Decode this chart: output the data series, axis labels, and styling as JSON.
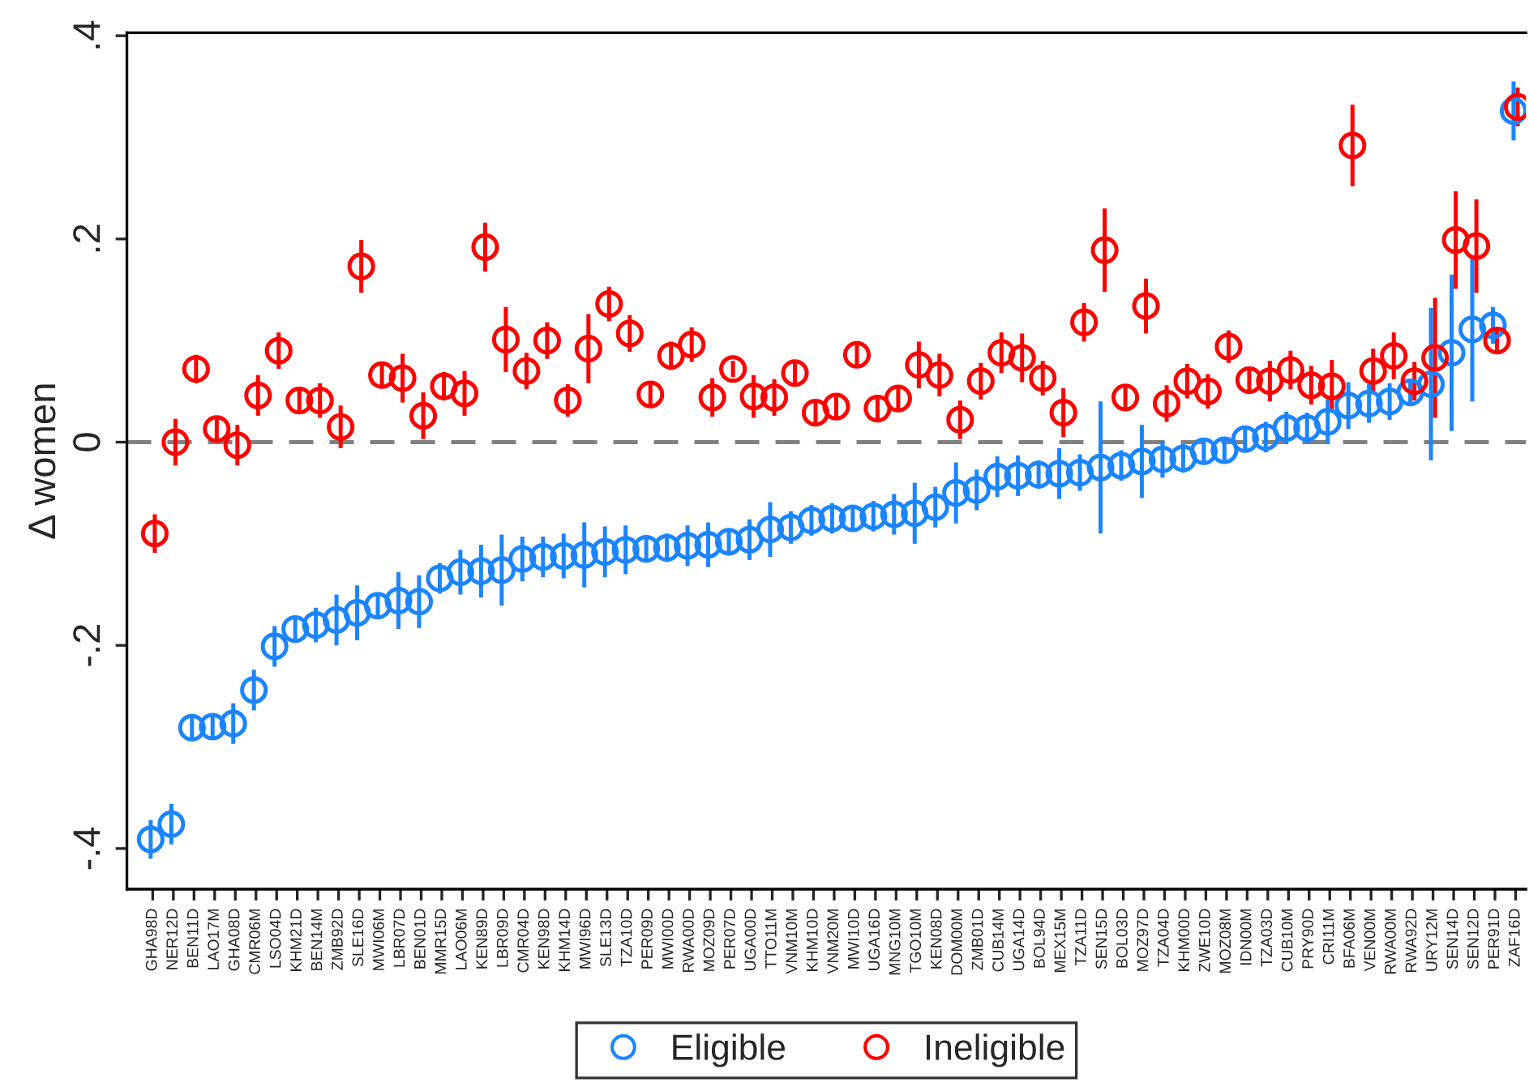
{
  "chart_data": {
    "type": "scatter",
    "ylabel": "Δ women",
    "categories": [
      "GHA98D",
      "NER12D",
      "BEN11D",
      "LAO17M",
      "GHA08D",
      "CMR06M",
      "LSO04D",
      "KHM21D",
      "BEN14M",
      "ZMB92D",
      "SLE16D",
      "MWI06M",
      "LBR07D",
      "BEN01D",
      "MMR15D",
      "LAO06M",
      "KEN89D",
      "LBR09D",
      "CMR04D",
      "KEN98D",
      "KHM14D",
      "MWI96D",
      "SLE13D",
      "TZA10D",
      "PER09D",
      "MWI00D",
      "RWA00D",
      "MOZ09D",
      "PER07D",
      "UGA00D",
      "TTO11M",
      "VNM10M",
      "KHM10D",
      "VNM20M",
      "MWI10D",
      "UGA16D",
      "MNG10M",
      "TGO10M",
      "KEN08D",
      "DOM00M",
      "ZMB01D",
      "CUB14M",
      "UGA14D",
      "BOL94D",
      "MEX15M",
      "TZA11D",
      "SEN15D",
      "BOL03D",
      "MOZ97D",
      "TZA04D",
      "KHM00D",
      "ZWE10D",
      "MOZ08M",
      "IDN00M",
      "TZA03D",
      "CUB10M",
      "PRY90D",
      "CRI11M",
      "BFA06M",
      "VEN00M",
      "RWA00M",
      "RWA92D",
      "URY12M",
      "SEN14D",
      "SEN12D",
      "PER91D",
      "ZAF16D"
    ],
    "series": [
      {
        "name": "Eligible",
        "color": "#1a85ff",
        "values": [
          -0.391,
          -0.376,
          -0.281,
          -0.28,
          -0.277,
          -0.244,
          -0.201,
          -0.184,
          -0.18,
          -0.175,
          -0.168,
          -0.161,
          -0.156,
          -0.157,
          -0.134,
          -0.128,
          -0.127,
          -0.126,
          -0.115,
          -0.113,
          -0.112,
          -0.111,
          -0.108,
          -0.106,
          -0.105,
          -0.104,
          -0.102,
          -0.101,
          -0.098,
          -0.096,
          -0.086,
          -0.084,
          -0.077,
          -0.075,
          -0.075,
          -0.073,
          -0.071,
          -0.07,
          -0.064,
          -0.05,
          -0.047,
          -0.034,
          -0.033,
          -0.032,
          -0.031,
          -0.03,
          -0.025,
          -0.023,
          -0.019,
          -0.017,
          -0.016,
          -0.009,
          -0.008,
          0.003,
          0.005,
          0.014,
          0.014,
          0.02,
          0.036,
          0.038,
          0.04,
          0.049,
          0.057,
          0.088,
          0.111,
          0.115,
          0.326
        ],
        "errors": [
          0.019,
          0.02,
          0.012,
          0.012,
          0.02,
          0.02,
          0.02,
          0.012,
          0.017,
          0.025,
          0.027,
          0.01,
          0.028,
          0.026,
          0.015,
          0.022,
          0.026,
          0.035,
          0.022,
          0.02,
          0.022,
          0.032,
          0.025,
          0.024,
          0.01,
          0.014,
          0.02,
          0.022,
          0.013,
          0.02,
          0.027,
          0.016,
          0.015,
          0.015,
          0.013,
          0.015,
          0.02,
          0.03,
          0.02,
          0.03,
          0.02,
          0.02,
          0.02,
          0.014,
          0.025,
          0.018,
          0.065,
          0.015,
          0.036,
          0.018,
          0.014,
          0.012,
          0.013,
          0.01,
          0.015,
          0.016,
          0.015,
          0.022,
          0.023,
          0.019,
          0.018,
          0.012,
          0.075,
          0.077,
          0.071,
          0.018,
          0.029
        ]
      },
      {
        "name": "Ineligible",
        "color": "#ff0000",
        "values": [
          -0.09,
          0.0,
          0.072,
          0.013,
          -0.003,
          0.046,
          0.09,
          0.041,
          0.041,
          0.015,
          0.173,
          0.066,
          0.063,
          0.026,
          0.055,
          0.048,
          0.192,
          0.101,
          0.07,
          0.1,
          0.041,
          0.092,
          0.136,
          0.107,
          0.047,
          0.085,
          0.096,
          0.044,
          0.072,
          0.045,
          0.044,
          0.068,
          0.029,
          0.035,
          0.086,
          0.033,
          0.043,
          0.076,
          0.066,
          0.022,
          0.06,
          0.088,
          0.083,
          0.063,
          0.029,
          0.118,
          0.189,
          0.044,
          0.134,
          0.038,
          0.06,
          0.05,
          0.094,
          0.061,
          0.06,
          0.071,
          0.056,
          0.055,
          0.292,
          0.07,
          0.085,
          0.06,
          0.083,
          0.199,
          0.193,
          0.1,
          0.33
        ],
        "errors": [
          0.019,
          0.023,
          0.014,
          0.01,
          0.02,
          0.02,
          0.018,
          0.01,
          0.017,
          0.021,
          0.026,
          0.01,
          0.024,
          0.023,
          0.014,
          0.022,
          0.024,
          0.032,
          0.018,
          0.018,
          0.016,
          0.034,
          0.017,
          0.018,
          0.01,
          0.014,
          0.017,
          0.019,
          0.008,
          0.021,
          0.018,
          0.01,
          0.012,
          0.01,
          0.01,
          0.011,
          0.012,
          0.023,
          0.021,
          0.019,
          0.018,
          0.02,
          0.024,
          0.017,
          0.024,
          0.019,
          0.041,
          0.01,
          0.027,
          0.018,
          0.017,
          0.017,
          0.016,
          0.01,
          0.02,
          0.019,
          0.019,
          0.026,
          0.04,
          0.022,
          0.023,
          0.019,
          0.059,
          0.048,
          0.046,
          0.012,
          0.019
        ]
      }
    ],
    "ylim": [
      -0.44,
      0.403
    ],
    "yticks": [
      {
        "value": -0.4,
        "label": "-.4"
      },
      {
        "value": -0.2,
        "label": "-.2"
      },
      {
        "value": 0,
        "label": "0"
      },
      {
        "value": 0.2,
        "label": ".2"
      },
      {
        "value": 0.4,
        "label": ".4"
      }
    ],
    "ref_lines": [
      {
        "axis": "y",
        "value": 0,
        "color": "#808080",
        "line_style": "dashed"
      }
    ],
    "marker": "circle",
    "grid": false,
    "legend": "bottom"
  }
}
